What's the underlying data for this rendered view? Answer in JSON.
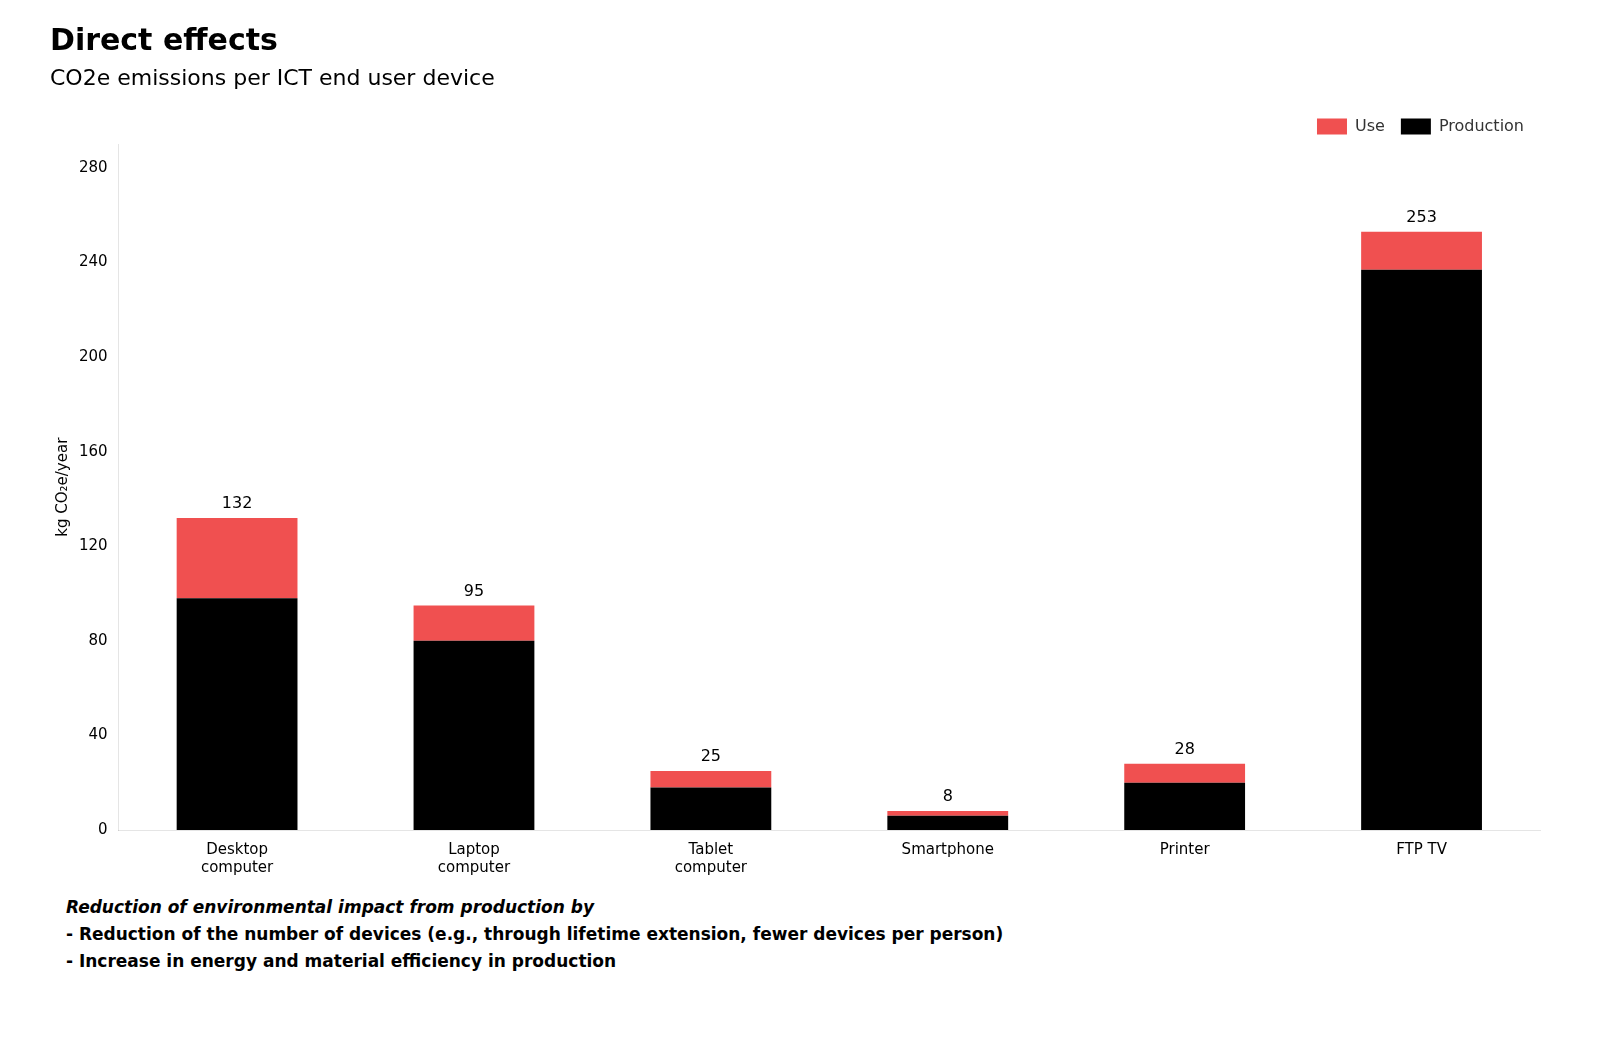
{
  "chart_data": {
    "type": "bar",
    "title": "Direct effects",
    "subtitle": "CO2e emissions per ICT end user device",
    "ylabel": "kg CO₂e/year",
    "categories": [
      "Desktop\ncomputer",
      "Laptop\ncomputer",
      "Tablet\ncomputer",
      "Smartphone",
      "Printer",
      "FTP TV"
    ],
    "series": [
      {
        "name": "Production",
        "color": "#000000",
        "values": [
          98,
          80,
          18,
          6,
          20,
          237
        ]
      },
      {
        "name": "Use",
        "color": "#f05050",
        "values": [
          34,
          15,
          7,
          2,
          8,
          16
        ]
      }
    ],
    "totals": [
      132,
      95,
      25,
      8,
      28,
      253
    ],
    "stacked": true,
    "ylim": [
      0,
      290
    ],
    "yticks": [
      0,
      40,
      80,
      120,
      160,
      200,
      240,
      280
    ],
    "grid": false,
    "legend": "upper right",
    "annotations": [
      " Reduction of environmental impact from production by",
      " - Reduction of the number of devices (e.g., through lifetime extension, fewer devices per person)",
      " - Increase in energy and material efficiency in production"
    ]
  }
}
